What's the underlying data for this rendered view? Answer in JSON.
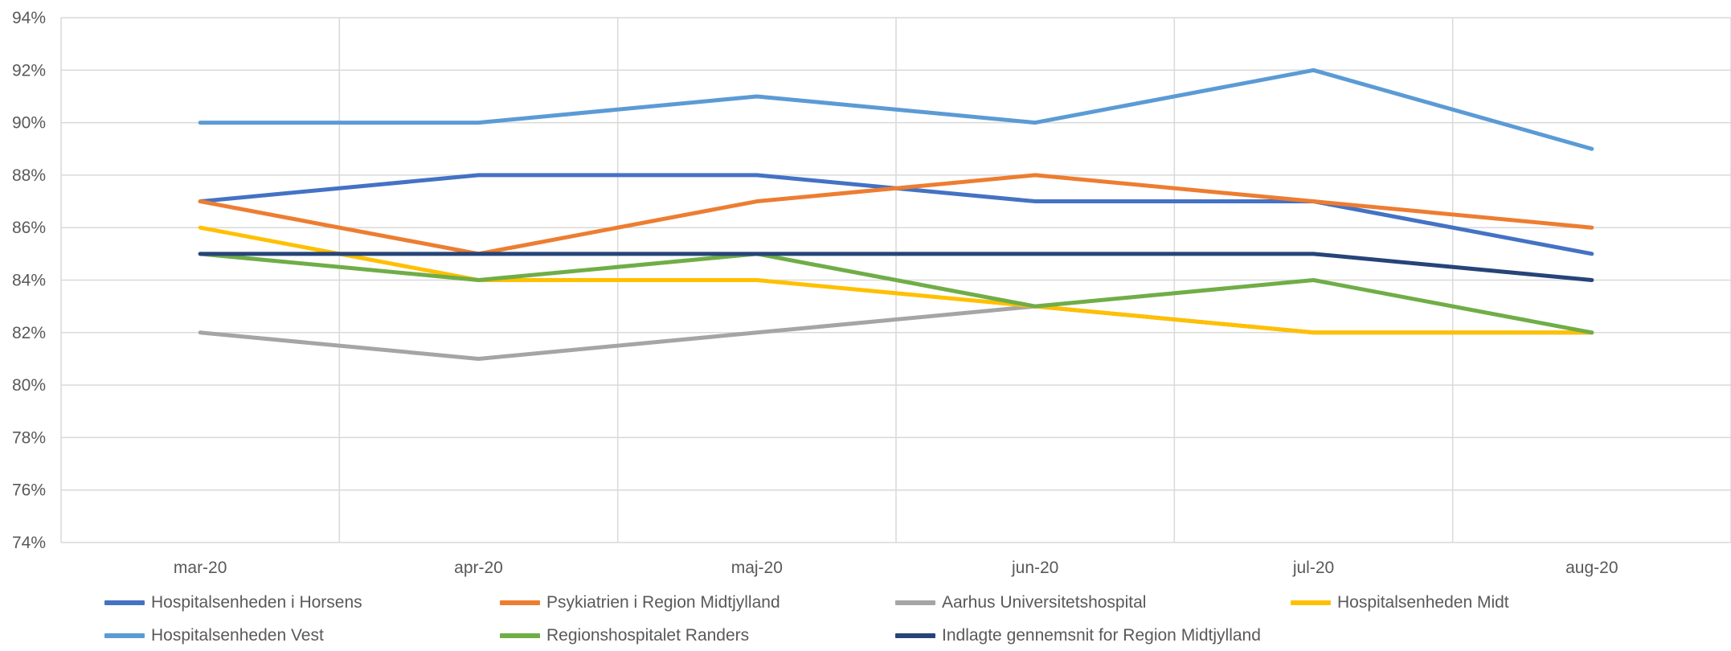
{
  "chart_data": {
    "type": "line",
    "title": "",
    "xlabel": "",
    "ylabel": "",
    "categories": [
      "mar-20",
      "apr-20",
      "maj-20",
      "jun-20",
      "jul-20",
      "aug-20"
    ],
    "ylim": [
      0.74,
      0.94
    ],
    "yticks": [
      "74%",
      "76%",
      "78%",
      "80%",
      "82%",
      "84%",
      "86%",
      "88%",
      "90%",
      "92%",
      "94%"
    ],
    "grid": true,
    "legend_position": "bottom",
    "series": [
      {
        "name": "Hospitalsenheden i Horsens",
        "color": "#4472c4",
        "values": [
          0.87,
          0.88,
          0.88,
          0.87,
          0.87,
          0.85
        ]
      },
      {
        "name": "Psykiatrien i Region Midtjylland",
        "color": "#ed7d31",
        "values": [
          0.87,
          0.85,
          0.87,
          0.88,
          0.87,
          0.86
        ]
      },
      {
        "name": "Aarhus Universitetshospital",
        "color": "#a5a5a5",
        "values": [
          0.82,
          0.81,
          0.82,
          0.83,
          0.82,
          0.82
        ]
      },
      {
        "name": "Hospitalsenheden Midt",
        "color": "#ffc000",
        "values": [
          0.86,
          0.84,
          0.84,
          0.83,
          0.82,
          0.82
        ]
      },
      {
        "name": "Hospitalsenheden Vest",
        "color": "#5b9bd5",
        "values": [
          0.9,
          0.9,
          0.91,
          0.9,
          0.92,
          0.89
        ]
      },
      {
        "name": "Regionshospitalet Randers",
        "color": "#70ad47",
        "values": [
          0.85,
          0.84,
          0.85,
          0.83,
          0.84,
          0.82
        ]
      },
      {
        "name": "Indlagte gennemsnit for Region Midtjylland",
        "color": "#264478",
        "values": [
          0.85,
          0.85,
          0.85,
          0.85,
          0.85,
          0.84
        ]
      }
    ]
  }
}
